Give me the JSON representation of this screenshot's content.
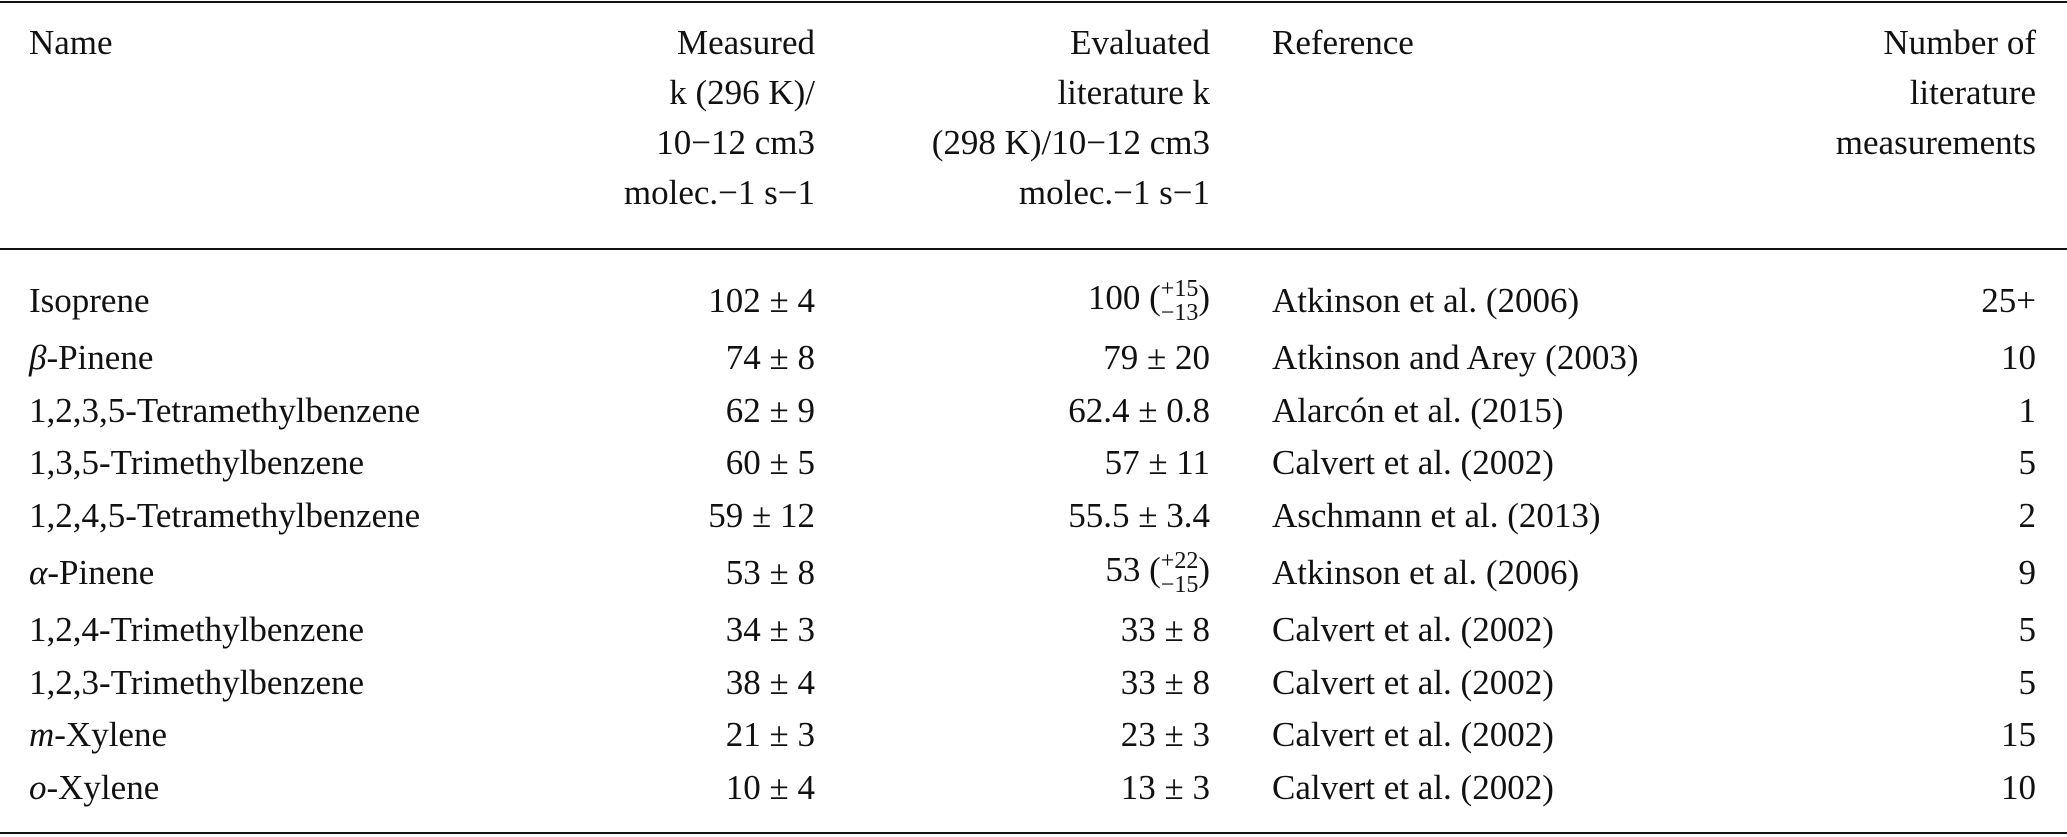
{
  "header": {
    "name": "Name",
    "measured": [
      "Measured",
      "k (296 K)/",
      "10−12 cm3",
      "molec.−1 s−1"
    ],
    "evaluated": [
      "Evaluated",
      "literature k",
      "(298 K)/10−12 cm3",
      "molec.−1 s−1"
    ],
    "reference": "Reference",
    "number": [
      "Number of",
      "literature",
      "measurements"
    ]
  },
  "rows": [
    {
      "prefix": "",
      "name": "Isoprene",
      "measured": "102 ± 4",
      "evaluated": "100",
      "eval_plus": "+15",
      "eval_minus": "−13",
      "reference": "Atkinson et al. (2006)",
      "number": "25+"
    },
    {
      "prefix": "β",
      "name": "-Pinene",
      "measured": "74 ± 8",
      "evaluated": "79 ± 20",
      "reference": "Atkinson and Arey (2003)",
      "number": "10"
    },
    {
      "prefix": "",
      "name": "1,2,3,5-Tetramethylbenzene",
      "measured": "62 ± 9",
      "evaluated": "62.4 ± 0.8",
      "reference": "Alarcón et al. (2015)",
      "number": "1"
    },
    {
      "prefix": "",
      "name": "1,3,5-Trimethylbenzene",
      "measured": "60 ± 5",
      "evaluated": "57 ± 11",
      "reference": "Calvert et al. (2002)",
      "number": "5"
    },
    {
      "prefix": "",
      "name": "1,2,4,5-Tetramethylbenzene",
      "measured": "59 ± 12",
      "evaluated": "55.5 ± 3.4",
      "reference": "Aschmann et al. (2013)",
      "number": "2"
    },
    {
      "prefix": "α",
      "name": "-Pinene",
      "measured": "53 ± 8",
      "evaluated": "53",
      "eval_plus": "+22",
      "eval_minus": "−15",
      "reference": "Atkinson et al. (2006)",
      "number": "9"
    },
    {
      "prefix": "",
      "name": "1,2,4-Trimethylbenzene",
      "measured": "34 ± 3",
      "evaluated": "33 ± 8",
      "reference": "Calvert et al. (2002)",
      "number": "5"
    },
    {
      "prefix": "",
      "name": "1,2,3-Trimethylbenzene",
      "measured": "38 ± 4",
      "evaluated": "33 ± 8",
      "reference": "Calvert et al. (2002)",
      "number": "5"
    },
    {
      "prefix": "m",
      "name": "-Xylene",
      "measured": "21 ± 3",
      "evaluated": "23 ± 3",
      "reference": "Calvert et al. (2002)",
      "number": "15"
    },
    {
      "prefix": "o",
      "name": "-Xylene",
      "measured": "10 ± 4",
      "evaluated": "13 ± 3",
      "reference": "Calvert et al. (2002)",
      "number": "10"
    }
  ]
}
